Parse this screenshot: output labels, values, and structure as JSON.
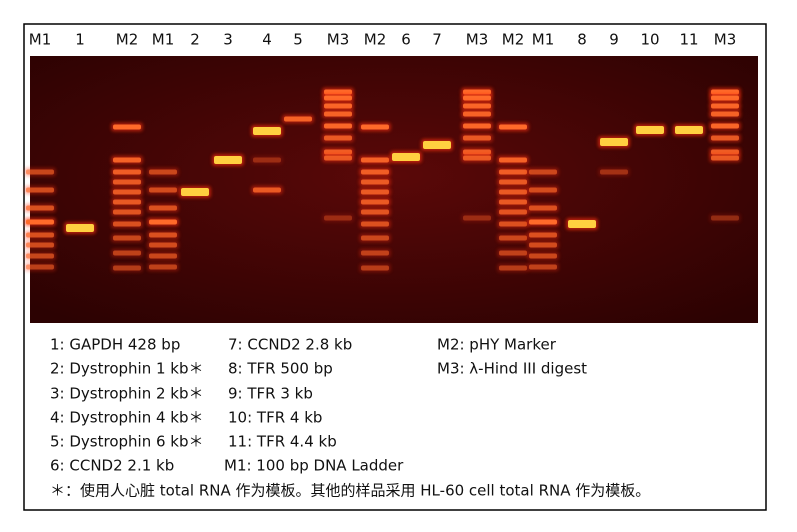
{
  "lane_labels": [
    "M1",
    "1",
    "M2",
    "M1",
    "2",
    "3",
    "4",
    "5",
    "M3",
    "M2",
    "6",
    "7",
    "M3",
    "M2",
    "M1",
    "8",
    "9",
    "10",
    "11",
    "M3"
  ],
  "legend": {
    "column_1": [
      "1: GAPDH 428 bp",
      "2: Dystrophin 1 kb＊",
      "3: Dystrophin 2 kb＊",
      "4: Dystrophin 4 kb＊",
      "5: Dystrophin 6 kb＊",
      "6: CCND2 2.1 kb"
    ],
    "column_2": [
      "7: CCND2 2.8 kb",
      "8: TFR 500 bp",
      "9: TFR 3 kb",
      "10: TFR 4 kb",
      "11: TFR 4.4 kb",
      "M1: 100 bp DNA Ladder"
    ],
    "column_3": [
      "M2: pHY Marker",
      "M3: λ-Hind III digest"
    ],
    "footnote": "＊：使用人心脏 total RNA 作为模板。其他的样品采用 HL-60 cell total RNA 作为模板。"
  }
}
